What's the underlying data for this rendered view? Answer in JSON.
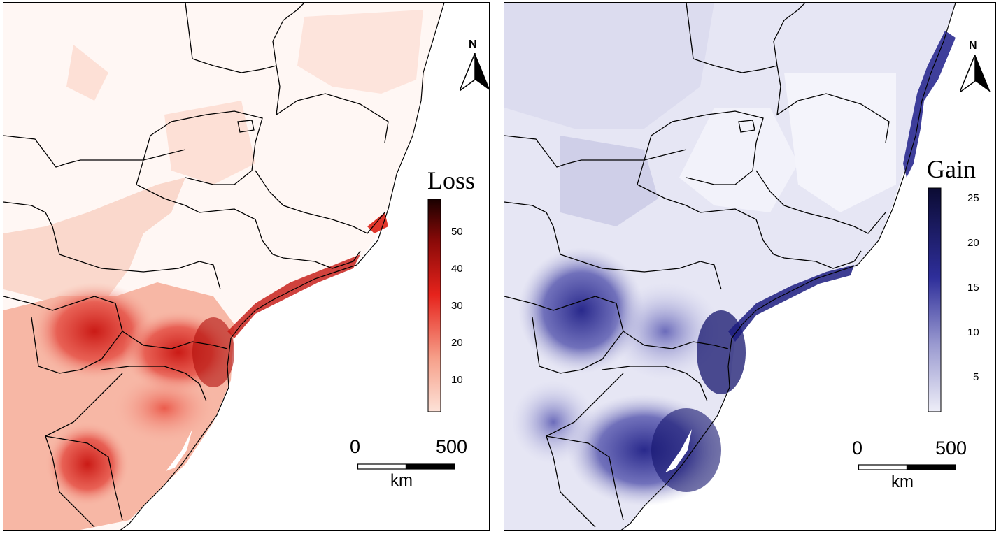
{
  "maps": [
    {
      "legend_title": "Loss",
      "colorbar_ticks": [
        "50",
        "40",
        "30",
        "20",
        "10"
      ],
      "colors": {
        "low": "#fde2d8",
        "mid": "#e6231c",
        "high": "#1a0000"
      }
    },
    {
      "legend_title": "Gain",
      "colorbar_ticks": [
        "25",
        "20",
        "15",
        "10",
        "5"
      ],
      "colors": {
        "low": "#eeeef8",
        "mid": "#2e2e9a",
        "high": "#0b0b33"
      }
    }
  ],
  "scale_bar": {
    "start": "0",
    "end": "500",
    "unit": "km"
  },
  "north_arrow": {
    "label": "N",
    "icon": "north-arrow-icon"
  }
}
